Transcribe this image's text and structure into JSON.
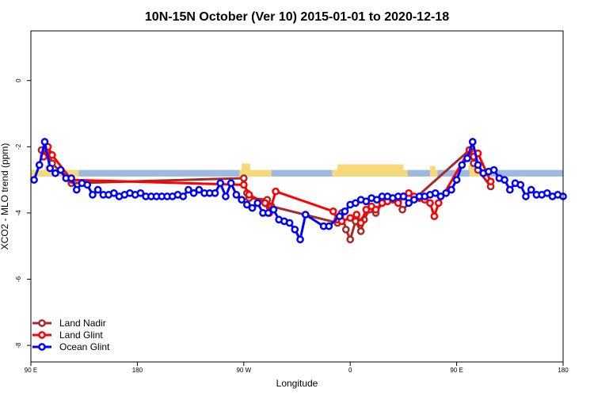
{
  "chart_data": {
    "type": "line",
    "title": "10N-15N October (Ver 10)   2015-01-01 to 2020-12-18",
    "xlabel": "Longitude",
    "ylabel": "XCO2 - MLO trend (ppm)",
    "xlim": [
      0,
      500
    ],
    "ylim": [
      -8.5,
      1.5
    ],
    "x_ticks": [
      {
        "value": 0,
        "label": "90 E"
      },
      {
        "value": 100,
        "label": "180"
      },
      {
        "value": 200,
        "label": "90 W"
      },
      {
        "value": 300,
        "label": "0"
      },
      {
        "value": 400,
        "label": "90 E"
      },
      {
        "value": 500,
        "label": "180"
      }
    ],
    "y_ticks": [
      {
        "value": 0,
        "label": "0"
      },
      {
        "value": -2,
        "label": "-2"
      },
      {
        "value": -4,
        "label": "-4"
      },
      {
        "value": -6,
        "label": "-6"
      },
      {
        "value": -8,
        "label": "-8"
      }
    ],
    "land_band": {
      "ymin": -2.9,
      "ymax": -2.7,
      "color": "#9fbadf",
      "land_color": "#f5d97a"
    },
    "legend_position": "bottom-left",
    "series": [
      {
        "name": "Land Nadir",
        "color": "#a52a2a",
        "points": [
          [
            10,
            -2.1
          ],
          [
            15,
            -2.1
          ],
          [
            20,
            -2.5
          ],
          [
            38,
            -3.1
          ],
          [
            200,
            -2.95
          ],
          [
            203,
            -3.4
          ],
          [
            205,
            -3.55
          ],
          [
            222,
            -3.6
          ],
          [
            226,
            -3.8
          ],
          [
            288,
            -4.3
          ],
          [
            292,
            -4.0
          ],
          [
            296,
            -4.5
          ],
          [
            300,
            -4.8
          ],
          [
            305,
            -4.25
          ],
          [
            310,
            -4.55
          ],
          [
            313,
            -4.2
          ],
          [
            318,
            -3.9
          ],
          [
            324,
            -4.0
          ],
          [
            330,
            -3.7
          ],
          [
            335,
            -3.6
          ],
          [
            339,
            -3.55
          ],
          [
            345,
            -3.65
          ],
          [
            349,
            -3.9
          ],
          [
            412,
            -2.1
          ],
          [
            416,
            -2.5
          ],
          [
            420,
            -2.7
          ],
          [
            432,
            -3.2
          ]
        ]
      },
      {
        "name": "Land Glint",
        "color": "#ff0000",
        "points": [
          [
            12,
            -2.3
          ],
          [
            16,
            -2.0
          ],
          [
            20,
            -2.25
          ],
          [
            38,
            -3.0
          ],
          [
            200,
            -3.15
          ],
          [
            205,
            -3.45
          ],
          [
            220,
            -3.7
          ],
          [
            224,
            -4.0
          ],
          [
            230,
            -3.35
          ],
          [
            284,
            -3.95
          ],
          [
            288,
            -4.2
          ],
          [
            292,
            -4.25
          ],
          [
            300,
            -4.15
          ],
          [
            306,
            -4.05
          ],
          [
            310,
            -4.3
          ],
          [
            315,
            -3.9
          ],
          [
            320,
            -3.8
          ],
          [
            324,
            -3.9
          ],
          [
            330,
            -3.7
          ],
          [
            335,
            -3.65
          ],
          [
            340,
            -3.6
          ],
          [
            345,
            -3.7
          ],
          [
            350,
            -3.5
          ],
          [
            355,
            -3.4
          ],
          [
            360,
            -3.5
          ],
          [
            365,
            -3.55
          ],
          [
            370,
            -3.6
          ],
          [
            375,
            -3.7
          ],
          [
            379,
            -4.1
          ],
          [
            383,
            -3.7
          ],
          [
            412,
            -2.1
          ],
          [
            416,
            -2.3
          ],
          [
            420,
            -2.2
          ],
          [
            432,
            -3.05
          ]
        ]
      },
      {
        "name": "Ocean Glint",
        "color": "#0000ff",
        "points": [
          [
            3,
            -3.0
          ],
          [
            8,
            -2.55
          ],
          [
            13,
            -1.85
          ],
          [
            18,
            -2.65
          ],
          [
            23,
            -2.8
          ],
          [
            28,
            -2.7
          ],
          [
            33,
            -2.95
          ],
          [
            38,
            -2.95
          ],
          [
            43,
            -3.3
          ],
          [
            48,
            -3.1
          ],
          [
            53,
            -3.15
          ],
          [
            58,
            -3.45
          ],
          [
            63,
            -3.3
          ],
          [
            68,
            -3.45
          ],
          [
            73,
            -3.45
          ],
          [
            78,
            -3.4
          ],
          [
            83,
            -3.5
          ],
          [
            88,
            -3.45
          ],
          [
            93,
            -3.4
          ],
          [
            98,
            -3.45
          ],
          [
            103,
            -3.4
          ],
          [
            108,
            -3.5
          ],
          [
            113,
            -3.5
          ],
          [
            118,
            -3.5
          ],
          [
            123,
            -3.5
          ],
          [
            128,
            -3.5
          ],
          [
            133,
            -3.5
          ],
          [
            138,
            -3.45
          ],
          [
            143,
            -3.5
          ],
          [
            148,
            -3.3
          ],
          [
            153,
            -3.4
          ],
          [
            158,
            -3.3
          ],
          [
            163,
            -3.4
          ],
          [
            168,
            -3.4
          ],
          [
            173,
            -3.4
          ],
          [
            178,
            -3.1
          ],
          [
            183,
            -3.5
          ],
          [
            188,
            -3.1
          ],
          [
            193,
            -3.45
          ],
          [
            198,
            -3.6
          ],
          [
            203,
            -3.75
          ],
          [
            208,
            -3.85
          ],
          [
            213,
            -3.7
          ],
          [
            218,
            -4.0
          ],
          [
            223,
            -4.0
          ],
          [
            228,
            -3.9
          ],
          [
            233,
            -4.2
          ],
          [
            238,
            -4.25
          ],
          [
            243,
            -4.3
          ],
          [
            248,
            -4.5
          ],
          [
            253,
            -4.8
          ],
          [
            258,
            -4.05
          ],
          [
            275,
            -4.4
          ],
          [
            280,
            -4.4
          ],
          [
            290,
            -4.1
          ],
          [
            295,
            -3.95
          ],
          [
            300,
            -3.75
          ],
          [
            305,
            -3.7
          ],
          [
            310,
            -3.6
          ],
          [
            315,
            -3.65
          ],
          [
            320,
            -3.55
          ],
          [
            325,
            -3.6
          ],
          [
            330,
            -3.5
          ],
          [
            335,
            -3.5
          ],
          [
            340,
            -3.55
          ],
          [
            345,
            -3.5
          ],
          [
            350,
            -3.5
          ],
          [
            355,
            -3.7
          ],
          [
            360,
            -3.6
          ],
          [
            365,
            -3.5
          ],
          [
            370,
            -3.5
          ],
          [
            375,
            -3.45
          ],
          [
            380,
            -3.4
          ],
          [
            385,
            -3.5
          ],
          [
            390,
            -3.4
          ],
          [
            395,
            -3.3
          ],
          [
            400,
            -3.0
          ],
          [
            405,
            -2.55
          ],
          [
            410,
            -2.35
          ],
          [
            415,
            -1.85
          ],
          [
            420,
            -2.55
          ],
          [
            425,
            -2.8
          ],
          [
            430,
            -2.75
          ],
          [
            435,
            -2.7
          ],
          [
            440,
            -2.95
          ],
          [
            445,
            -3.0
          ],
          [
            450,
            -3.3
          ],
          [
            455,
            -3.1
          ],
          [
            460,
            -3.15
          ],
          [
            465,
            -3.5
          ],
          [
            470,
            -3.3
          ],
          [
            475,
            -3.45
          ],
          [
            480,
            -3.45
          ],
          [
            485,
            -3.4
          ],
          [
            490,
            -3.5
          ],
          [
            495,
            -3.45
          ],
          [
            500,
            -3.5
          ]
        ]
      }
    ]
  }
}
